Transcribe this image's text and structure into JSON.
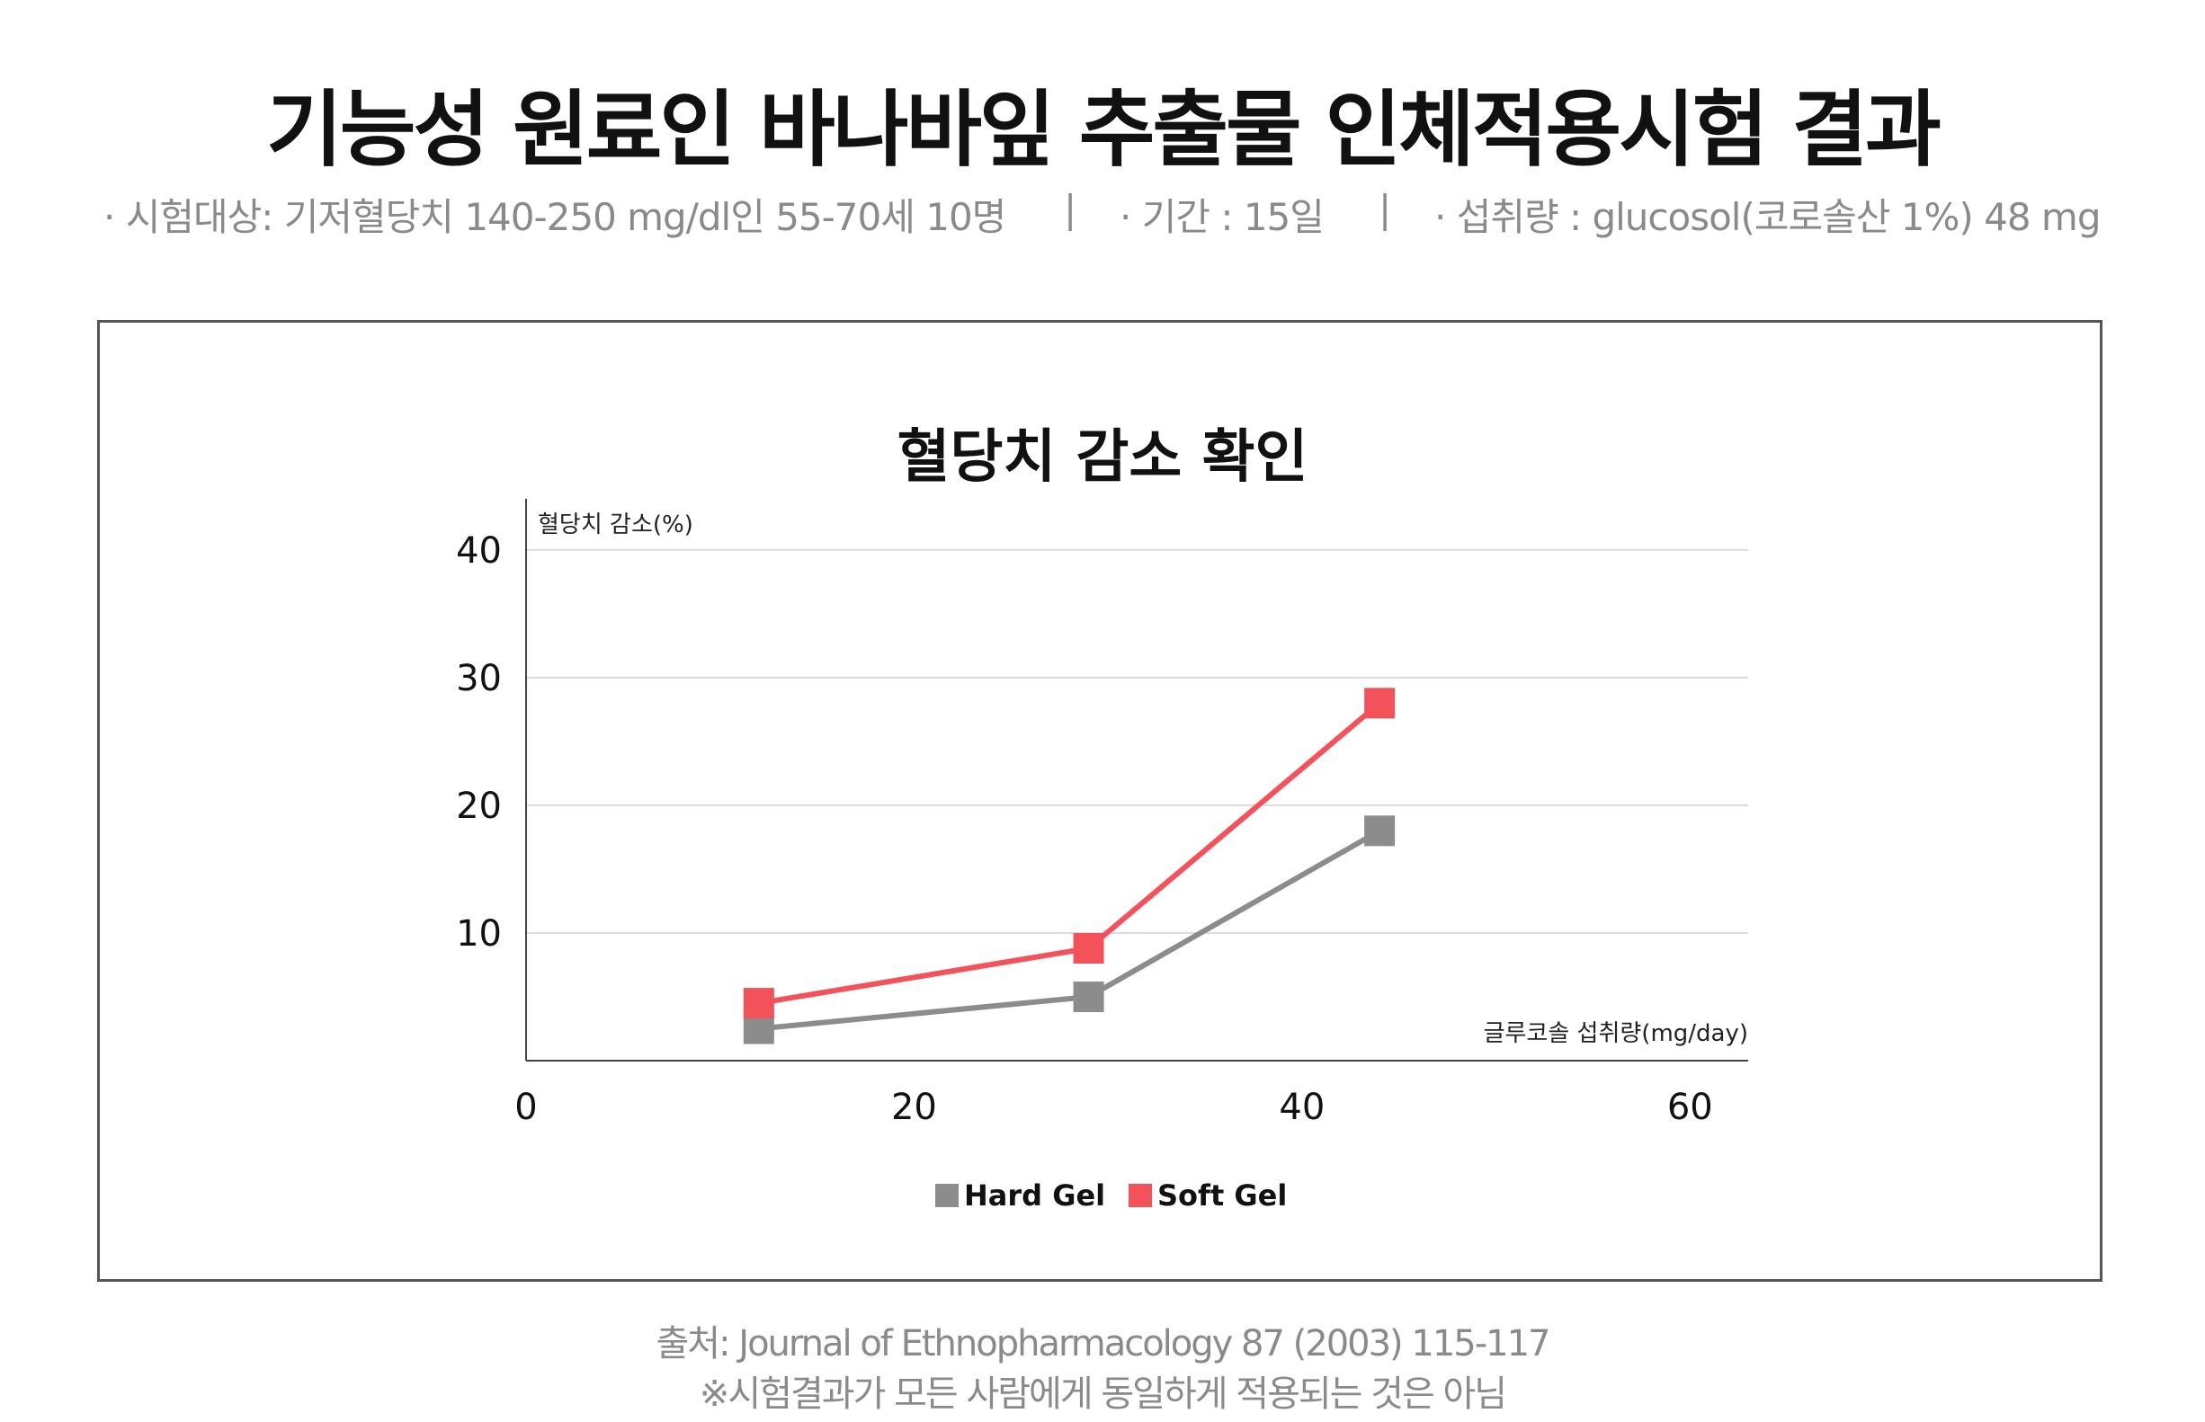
{
  "page": {
    "title": "기능성 원료인 바나바잎  추출물 인체적용시험 결과",
    "conditions": {
      "subject": "· 시험대상: 기저혈당치 140-250 mg/dl인 55-70세 10명",
      "separator_1": "|",
      "period": "· 기간 : 15일",
      "separator_2": "|",
      "intake": "· 섭취량 : glucosol(코로솔산 1%) 48 mg"
    },
    "source": "출처: Journal of Ethnopharmacology 87 (2003) 115-117",
    "disclaimer": "※시험결과가 모든 사람에게 동일하게 적용되는 것은 아님"
  },
  "chart_data": {
    "type": "line",
    "title": "혈당치 감소 확인",
    "ylabel": "혈당치 감소(%)",
    "xlabel": "글루코솔 섭취량(mg/day)",
    "x_ticks": [
      "0",
      "20",
      "40",
      "60"
    ],
    "y_ticks": [
      "10",
      "20",
      "30",
      "40"
    ],
    "xlim": [
      0,
      63
    ],
    "ylim": [
      0,
      44
    ],
    "grid": true,
    "legend_position": "bottom-center",
    "series": [
      {
        "name": "Hard Gel",
        "color": "#8c8c8c",
        "x": [
          12,
          29,
          44
        ],
        "y": [
          2.5,
          5,
          18
        ]
      },
      {
        "name": "Soft Gel",
        "color": "#f4525a",
        "x": [
          12,
          29,
          44
        ],
        "y": [
          4.5,
          8.8,
          28
        ]
      }
    ]
  }
}
